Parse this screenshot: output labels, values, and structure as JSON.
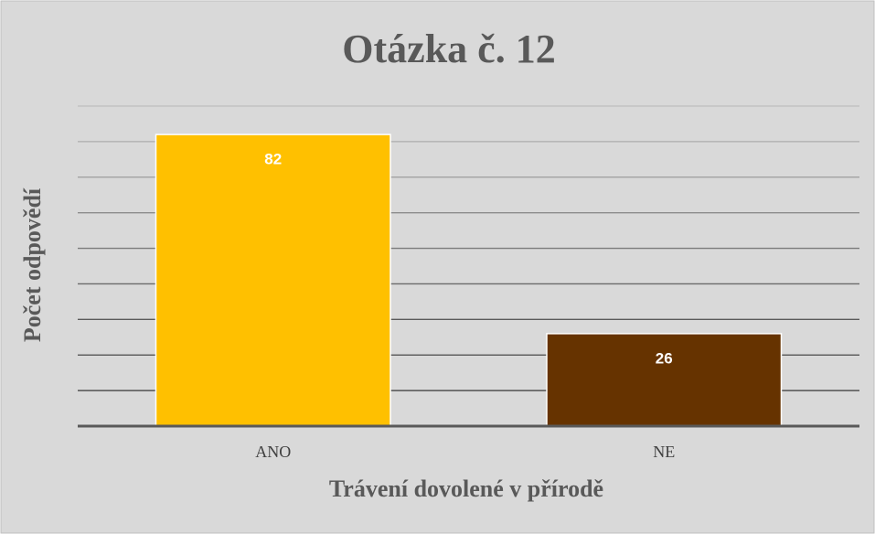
{
  "chart_data": {
    "type": "bar",
    "title": "Otázka č. 12",
    "x_label": "Trávení dovolené v přírodě",
    "y_label": "Počet odpovědí",
    "categories": [
      "ANO",
      "NE"
    ],
    "values": [
      82,
      26
    ],
    "colors": [
      "#ffc000",
      "#663300"
    ],
    "ylim": [
      0,
      90
    ],
    "yticks": [
      0,
      10,
      20,
      30,
      40,
      50,
      60,
      70,
      80,
      90
    ],
    "grid": true
  }
}
